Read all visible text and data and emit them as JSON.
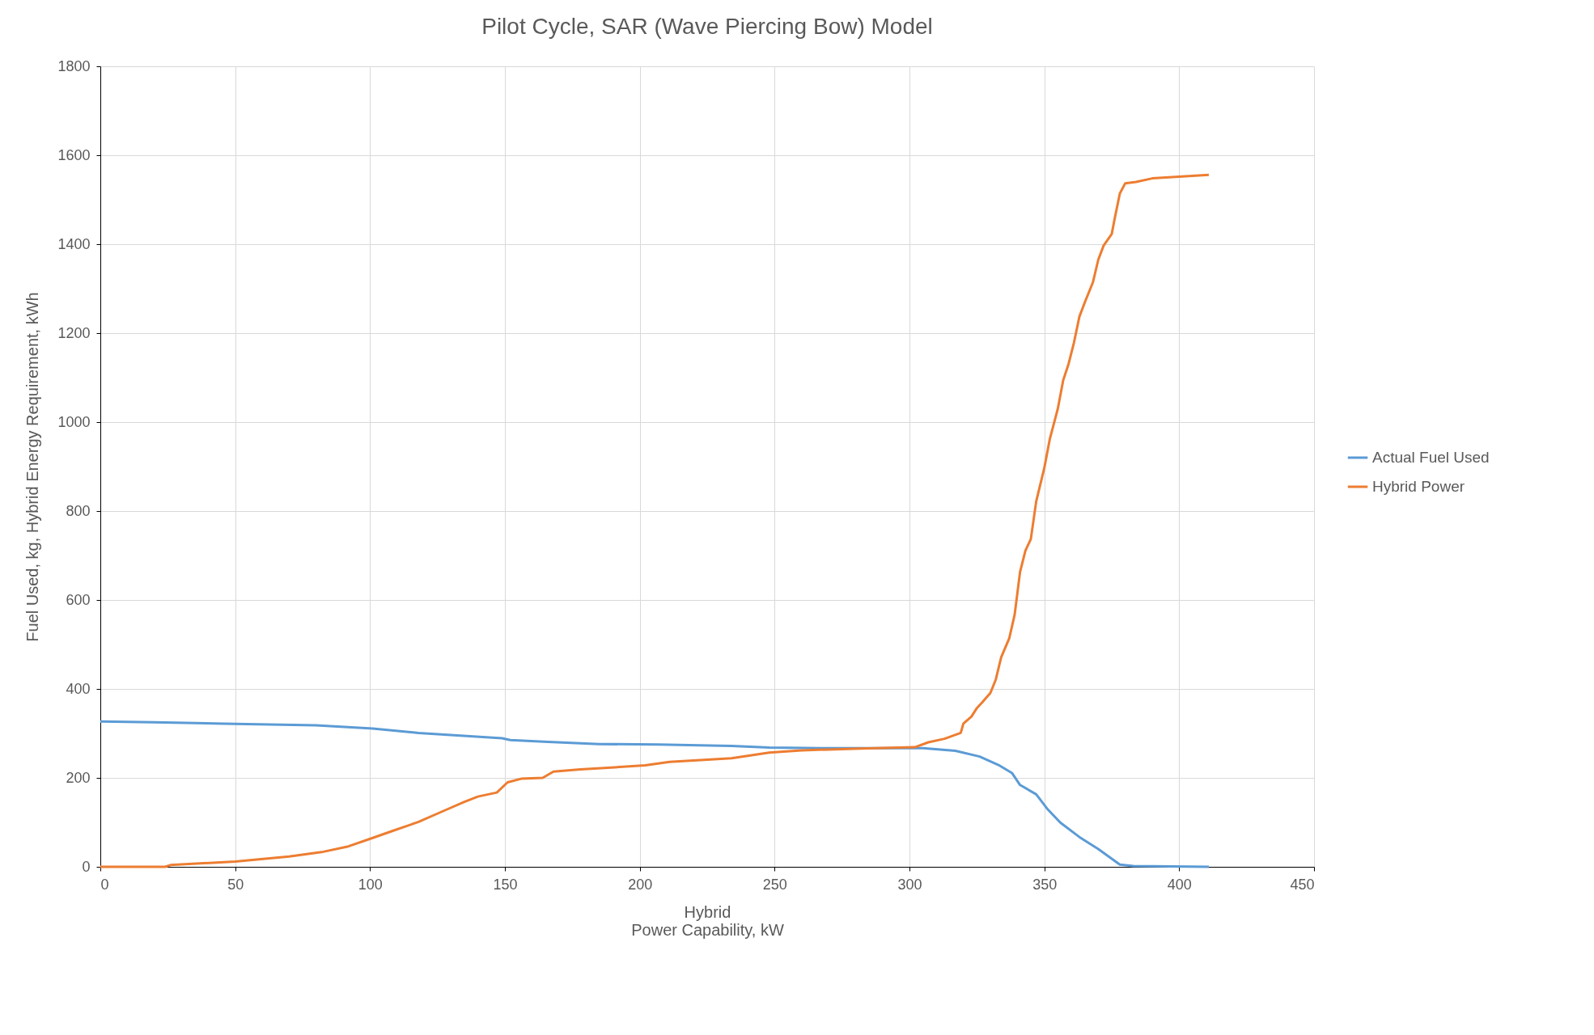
{
  "chart_data": {
    "type": "line",
    "title": "Pilot Cycle, SAR (Wave Piercing Bow) Model",
    "xlabel": "Hybrid\nPower Capability, kW",
    "ylabel": "Fuel Used, kg, Hybrid Energy Requirement, kWh",
    "xlim": [
      0,
      450
    ],
    "xticks": [
      0,
      50,
      100,
      150,
      200,
      250,
      300,
      350,
      400,
      450
    ],
    "ylim": [
      0,
      1800
    ],
    "yticks": [
      0,
      200,
      400,
      600,
      800,
      1000,
      1200,
      1400,
      1600,
      1800
    ],
    "grid": true,
    "legend": "right",
    "marker": "none",
    "line_style": "solid",
    "series": [
      {
        "name": "Actual Fuel Used",
        "color": "#5b9bd5",
        "x": [
          0,
          20,
          46,
          80,
          101,
          118,
          149,
          152,
          166,
          185,
          207,
          234,
          248,
          267,
          305,
          317,
          326,
          333,
          338,
          341,
          347,
          351,
          356,
          363,
          370,
          378,
          383,
          411
        ],
        "values": [
          327,
          325,
          322,
          318,
          311,
          301,
          289,
          285,
          281,
          276,
          275,
          272,
          268,
          267,
          267,
          261,
          248,
          229,
          211,
          184,
          163,
          131,
          99,
          67,
          40,
          5,
          2,
          0
        ]
      },
      {
        "name": "Hybrid Power",
        "color": "#ed7d31",
        "x": [
          0,
          24,
          26,
          50,
          70,
          82,
          92,
          101,
          108,
          118,
          127,
          135,
          140,
          147,
          151,
          156,
          164,
          168,
          178,
          202,
          211,
          234,
          248,
          260,
          282,
          302,
          307,
          313,
          319,
          320,
          323,
          325,
          327,
          330,
          332,
          334,
          337,
          339,
          341,
          343,
          345,
          347,
          350,
          352,
          355,
          357,
          359,
          361,
          363,
          365,
          368,
          370,
          372,
          375,
          376,
          378,
          380,
          384,
          390,
          411
        ],
        "values": [
          0,
          0,
          4,
          12,
          23,
          33,
          46,
          65,
          80,
          101,
          125,
          146,
          158,
          167,
          190,
          198,
          200,
          214,
          219,
          228,
          236,
          244,
          257,
          262,
          266,
          269,
          280,
          288,
          301,
          322,
          338,
          357,
          370,
          391,
          421,
          471,
          514,
          567,
          663,
          711,
          737,
          822,
          897,
          961,
          1030,
          1094,
          1131,
          1179,
          1237,
          1269,
          1314,
          1365,
          1397,
          1423,
          1455,
          1514,
          1537,
          1540,
          1548,
          1556
        ]
      }
    ]
  }
}
